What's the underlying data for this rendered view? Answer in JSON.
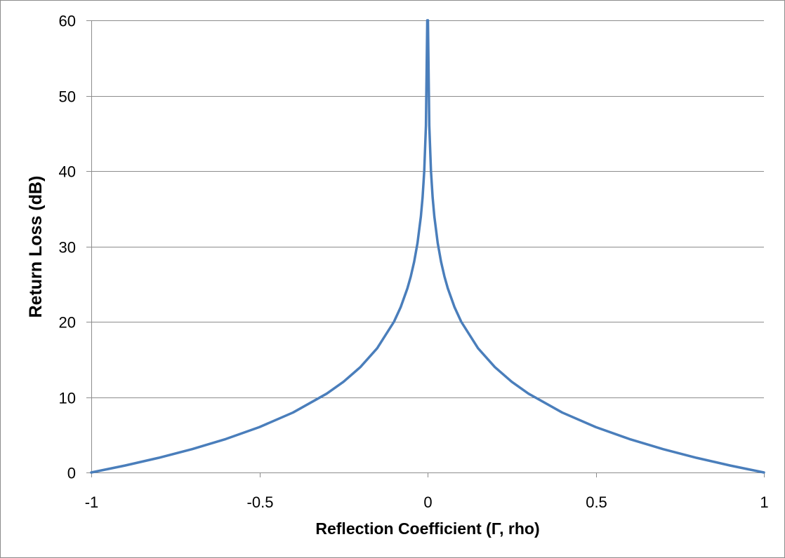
{
  "chart_data": {
    "type": "line",
    "title": "",
    "xlabel": "Reflection Coefficient (Γ, rho)",
    "ylabel": "Return Loss (dB)",
    "xlim": [
      -1,
      1
    ],
    "ylim": [
      0,
      60
    ],
    "x_ticks": [
      "-1",
      "-0.5",
      "0",
      "0.5",
      "1"
    ],
    "y_ticks": [
      "0",
      "10",
      "20",
      "30",
      "40",
      "50",
      "60"
    ],
    "grid": {
      "horizontal": true,
      "vertical": false
    },
    "legend": "none",
    "series": [
      {
        "color": "#4a7ebb",
        "x": [
          -1,
          -0.9,
          -0.8,
          -0.7,
          -0.6,
          -0.5,
          -0.4,
          -0.3,
          -0.25,
          -0.2,
          -0.15,
          -0.1,
          -0.08,
          -0.06,
          -0.05,
          -0.04,
          -0.03,
          -0.02,
          -0.015,
          -0.01,
          -0.005,
          -0.001
        ],
        "y": [
          0,
          0.92,
          1.94,
          3.1,
          4.44,
          6.02,
          7.96,
          10.46,
          12.04,
          13.98,
          16.48,
          20.0,
          21.94,
          24.44,
          26.02,
          27.96,
          30.46,
          33.98,
          36.48,
          40.0,
          46.02,
          60.0
        ]
      },
      {
        "color": "#4a7ebb",
        "x": [
          0.001,
          0.005,
          0.01,
          0.015,
          0.02,
          0.03,
          0.04,
          0.05,
          0.06,
          0.08,
          0.1,
          0.15,
          0.2,
          0.25,
          0.3,
          0.4,
          0.5,
          0.6,
          0.7,
          0.8,
          0.9,
          1
        ],
        "y": [
          60.0,
          46.02,
          40.0,
          36.48,
          33.98,
          30.46,
          27.96,
          26.02,
          24.44,
          21.94,
          20.0,
          16.48,
          13.98,
          12.04,
          10.46,
          7.96,
          6.02,
          4.44,
          3.1,
          1.94,
          0.92,
          0
        ]
      }
    ]
  }
}
